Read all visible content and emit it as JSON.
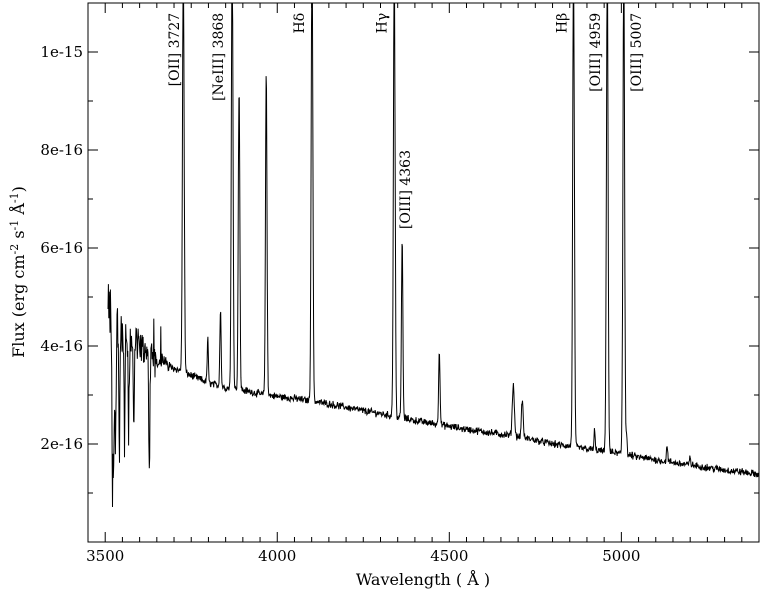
{
  "chart_data": {
    "type": "line",
    "title": "",
    "xlabel": "Wavelength  ( Å )",
    "ylabel": "Flux (erg cm⁻² s⁻¹ Å⁻¹)",
    "ylabel_parts": {
      "base": "Flux (erg cm",
      "sup1": "-2",
      "mid1": " s",
      "sup2": "-1",
      "mid2": " Å",
      "sup3": "-1",
      "end": ")"
    },
    "xlim": [
      3450,
      5400
    ],
    "ylim": [
      0,
      1.1e-15
    ],
    "x_ticks": [
      3500,
      4000,
      4500,
      5000
    ],
    "x_tick_labels": [
      "3500",
      "4000",
      "4500",
      "5000"
    ],
    "y_ticks": [
      2e-16,
      4e-16,
      6e-16,
      8e-16,
      1e-15
    ],
    "y_tick_labels": [
      "2e-16",
      "4e-16",
      "6e-16",
      "8e-16",
      "1e-15"
    ],
    "grid": false,
    "line_color": "#000000",
    "continuum": {
      "x": [
        3510,
        3550,
        3600,
        3650,
        3700,
        3750,
        3800,
        3850,
        3900,
        3950,
        4000,
        4050,
        4100,
        4150,
        4200,
        4250,
        4300,
        4350,
        4400,
        4450,
        4500,
        4550,
        4600,
        4650,
        4700,
        4750,
        4800,
        4850,
        4900,
        4950,
        5000,
        5050,
        5100,
        5150,
        5200,
        5250,
        5300,
        5350,
        5400
      ],
      "y": [
        4.7e-16,
        4.3e-16,
        4e-16,
        3.75e-16,
        3.55e-16,
        3.4e-16,
        3.25e-16,
        3.15e-16,
        3.1e-16,
        3.02e-16,
        2.97e-16,
        2.93e-16,
        2.88e-16,
        2.82e-16,
        2.75e-16,
        2.68e-16,
        2.62e-16,
        2.55e-16,
        2.48e-16,
        2.42e-16,
        2.36e-16,
        2.3e-16,
        2.25e-16,
        2.2e-16,
        2.15e-16,
        2.08e-16,
        2e-16,
        1.95e-16,
        1.9e-16,
        1.85e-16,
        1.8e-16,
        1.73e-16,
        1.68e-16,
        1.62e-16,
        1.57e-16,
        1.52e-16,
        1.47e-16,
        1.43e-16,
        1.38e-16
      ]
    },
    "emission_lines": [
      {
        "x": 3727,
        "peak": 1.2e-15,
        "width": 2.4
      },
      {
        "x": 3869,
        "peak": 1.2e-15,
        "width": 2.4
      },
      {
        "x": 3889,
        "peak": 9.3e-16,
        "width": 2.2
      },
      {
        "x": 3968,
        "peak": 9.65e-16,
        "width": 2.2
      },
      {
        "x": 3835,
        "peak": 4.8e-16,
        "width": 1.8
      },
      {
        "x": 3798,
        "peak": 4.2e-16,
        "width": 1.6
      },
      {
        "x": 4101,
        "peak": 1.2e-15,
        "width": 2.4
      },
      {
        "x": 4340,
        "peak": 1.2e-15,
        "width": 2.4
      },
      {
        "x": 4363,
        "peak": 6.2e-16,
        "width": 2.0
      },
      {
        "x": 4471,
        "peak": 3.95e-16,
        "width": 2.0
      },
      {
        "x": 4686,
        "peak": 3.2e-16,
        "width": 3.0
      },
      {
        "x": 4712,
        "peak": 2.9e-16,
        "width": 2.5
      },
      {
        "x": 4861,
        "peak": 1.2e-15,
        "width": 2.4
      },
      {
        "x": 4959,
        "peak": 1.2e-15,
        "width": 2.4
      },
      {
        "x": 5007,
        "peak": 1.2e-15,
        "width": 2.4
      },
      {
        "x": 4922,
        "peak": 2.3e-16,
        "width": 1.6
      },
      {
        "x": 5015,
        "peak": 2.2e-16,
        "width": 1.6
      },
      {
        "x": 5133,
        "peak": 2e-16,
        "width": 1.6
      },
      {
        "x": 5200,
        "peak": 1.75e-16,
        "width": 1.6
      }
    ],
    "absorption_dips": [
      {
        "x": 3521,
        "depth": 3.5e-16
      },
      {
        "x": 3525,
        "depth": 3e-16
      },
      {
        "x": 3530,
        "depth": 2.6e-16
      },
      {
        "x": 3541,
        "depth": 2.6e-16
      },
      {
        "x": 3556,
        "depth": 2.2e-16
      },
      {
        "x": 3568,
        "depth": 2.2e-16
      },
      {
        "x": 3583,
        "depth": 1.8e-16
      },
      {
        "x": 3628,
        "depth": 2.4e-16
      }
    ],
    "noise_amplitude": 6e-18,
    "annotations": [
      {
        "text": "[OII] 3727",
        "x": 3714,
        "y_top": 1.08e-15
      },
      {
        "text": "[NeIII] 3868",
        "x": 3842,
        "y_top": 1.08e-15
      },
      {
        "text": "Hδ",
        "x": 4078,
        "y_top": 1.08e-15
      },
      {
        "text": "Hγ",
        "x": 4318,
        "y_top": 1.08e-15
      },
      {
        "text": "[OIII] 4363",
        "x": 4386,
        "y_top": 8e-16
      },
      {
        "text": "Hβ",
        "x": 4840,
        "y_top": 1.08e-15
      },
      {
        "text": "[OIII] 4959",
        "x": 4938,
        "y_top": 1.08e-15
      },
      {
        "text": "[OIII] 5007",
        "x": 5057,
        "y_top": 1.08e-15
      }
    ]
  }
}
